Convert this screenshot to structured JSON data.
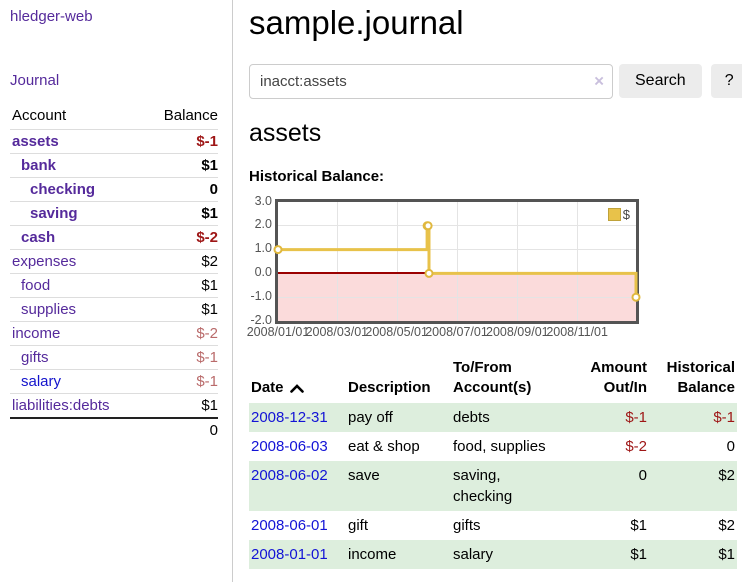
{
  "sidebar": {
    "app_title": "hledger-web",
    "journal_label": "Journal",
    "table": {
      "account_header": "Account",
      "balance_header": "Balance",
      "accounts": [
        {
          "name": "assets",
          "balance": "$-1",
          "depth": 1,
          "selected": true
        },
        {
          "name": "bank",
          "balance": "$1",
          "depth": 2,
          "selected": true
        },
        {
          "name": "checking",
          "balance": "0",
          "depth": 3,
          "selected": true
        },
        {
          "name": "saving",
          "balance": "$1",
          "depth": 3,
          "selected": true
        },
        {
          "name": "cash",
          "balance": "$-2",
          "depth": 2,
          "selected": true
        },
        {
          "name": "expenses",
          "balance": "$2",
          "depth": 1,
          "selected": false
        },
        {
          "name": "food",
          "balance": "$1",
          "depth": 2,
          "selected": false
        },
        {
          "name": "supplies",
          "balance": "$1",
          "depth": 2,
          "selected": false
        },
        {
          "name": "income",
          "balance": "$-2",
          "depth": 1,
          "selected": false
        },
        {
          "name": "gifts",
          "balance": "$-1",
          "depth": 2,
          "selected": false
        },
        {
          "name": "salary",
          "balance": "$-1",
          "depth": 2,
          "selected": false,
          "blue": true
        },
        {
          "name": "liabilities:debts",
          "balance": "$1",
          "depth": 1,
          "selected": false
        }
      ],
      "total": "0"
    }
  },
  "main": {
    "title": "sample.journal",
    "search": {
      "query": "inacct:assets",
      "clear_icon": "×",
      "search_label": "Search",
      "help_label": "?"
    },
    "account_heading": "assets",
    "chart_title": "Historical Balance:",
    "register": {
      "headers": {
        "date": "Date",
        "sort_icon": "chevron-up",
        "description": "Description",
        "accounts": "To/From Account(s)",
        "amount": "Amount Out/In",
        "balance": "Historical Balance"
      },
      "rows": [
        {
          "date": "2008-12-31",
          "description": "pay off",
          "accounts": "debts",
          "amount": "$-1",
          "balance": "$-1"
        },
        {
          "date": "2008-06-03",
          "description": "eat & shop",
          "accounts": "food, supplies",
          "amount": "$-2",
          "balance": "0"
        },
        {
          "date": "2008-06-02",
          "description": "save",
          "accounts": "saving,\nchecking",
          "amount": "0",
          "balance": "$2"
        },
        {
          "date": "2008-06-01",
          "description": "gift",
          "accounts": "gifts",
          "amount": "$1",
          "balance": "$2"
        },
        {
          "date": "2008-01-01",
          "description": "income",
          "accounts": "salary",
          "amount": "$1",
          "balance": "$1"
        }
      ]
    }
  },
  "chart_data": {
    "type": "line",
    "title": "Historical Balance:",
    "step": true,
    "series": [
      {
        "name": "$",
        "points": [
          [
            "2008-01-01",
            1
          ],
          [
            "2008-06-01",
            2
          ],
          [
            "2008-06-02",
            2
          ],
          [
            "2008-06-03",
            0
          ],
          [
            "2008-12-31",
            -1
          ]
        ]
      }
    ],
    "ylim": [
      -2,
      3
    ],
    "ytick_labels": [
      "3.0",
      "2.0",
      "1.0",
      "0.0",
      "-1.0",
      "-2.0"
    ],
    "ytick_values": [
      3,
      2,
      1,
      0,
      -1,
      -2
    ],
    "xtick_labels": [
      "2008/01/01",
      "2008/03/01",
      "2008/05/01",
      "2008/07/01",
      "2008/09/01",
      "2008/11/01"
    ],
    "grid": true,
    "legend": "$",
    "legend_position": "top-right",
    "series_color": "#e8c24a",
    "marker_color": "#e0b83e",
    "negative_region_color": "#fbdbdb",
    "zero_line_color": "#9b0000"
  }
}
